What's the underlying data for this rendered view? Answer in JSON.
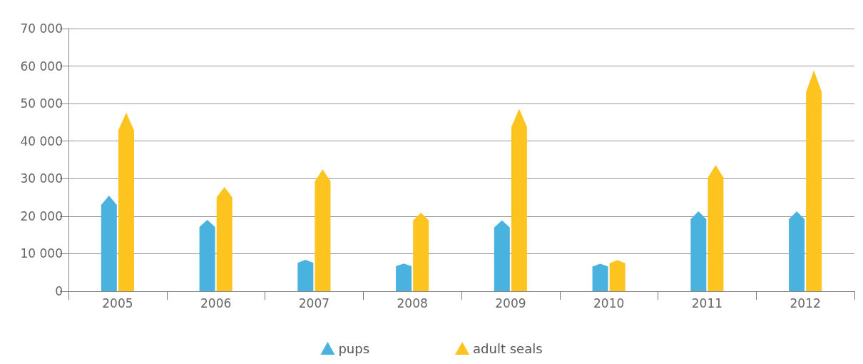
{
  "chart_data": {
    "type": "bar",
    "categories": [
      "2005",
      "2006",
      "2007",
      "2008",
      "2009",
      "2010",
      "2011",
      "2012"
    ],
    "series": [
      {
        "name": "pups",
        "color": "#4ab2df",
        "values": [
          25500,
          19000,
          8400,
          7400,
          18900,
          7300,
          21300,
          21300
        ]
      },
      {
        "name": "adult seals",
        "color": "#fdc31f",
        "values": [
          47600,
          27800,
          32500,
          20900,
          48600,
          8300,
          33600,
          58900
        ]
      }
    ],
    "ylim": [
      0,
      70000
    ],
    "yticks": [
      0,
      {
        "value": 10000,
        "label": "10 000"
      },
      {
        "value": 20000,
        "label": "20 000"
      },
      {
        "value": 30000,
        "label": "30 000"
      },
      {
        "value": 40000,
        "label": "40 000"
      },
      {
        "value": 50000,
        "label": "50 000"
      },
      {
        "value": 60000,
        "label": "60 000"
      },
      {
        "value": 70000,
        "label": "70 000"
      }
    ],
    "grid": "y",
    "legend": "bottom",
    "marker": "triangle"
  }
}
